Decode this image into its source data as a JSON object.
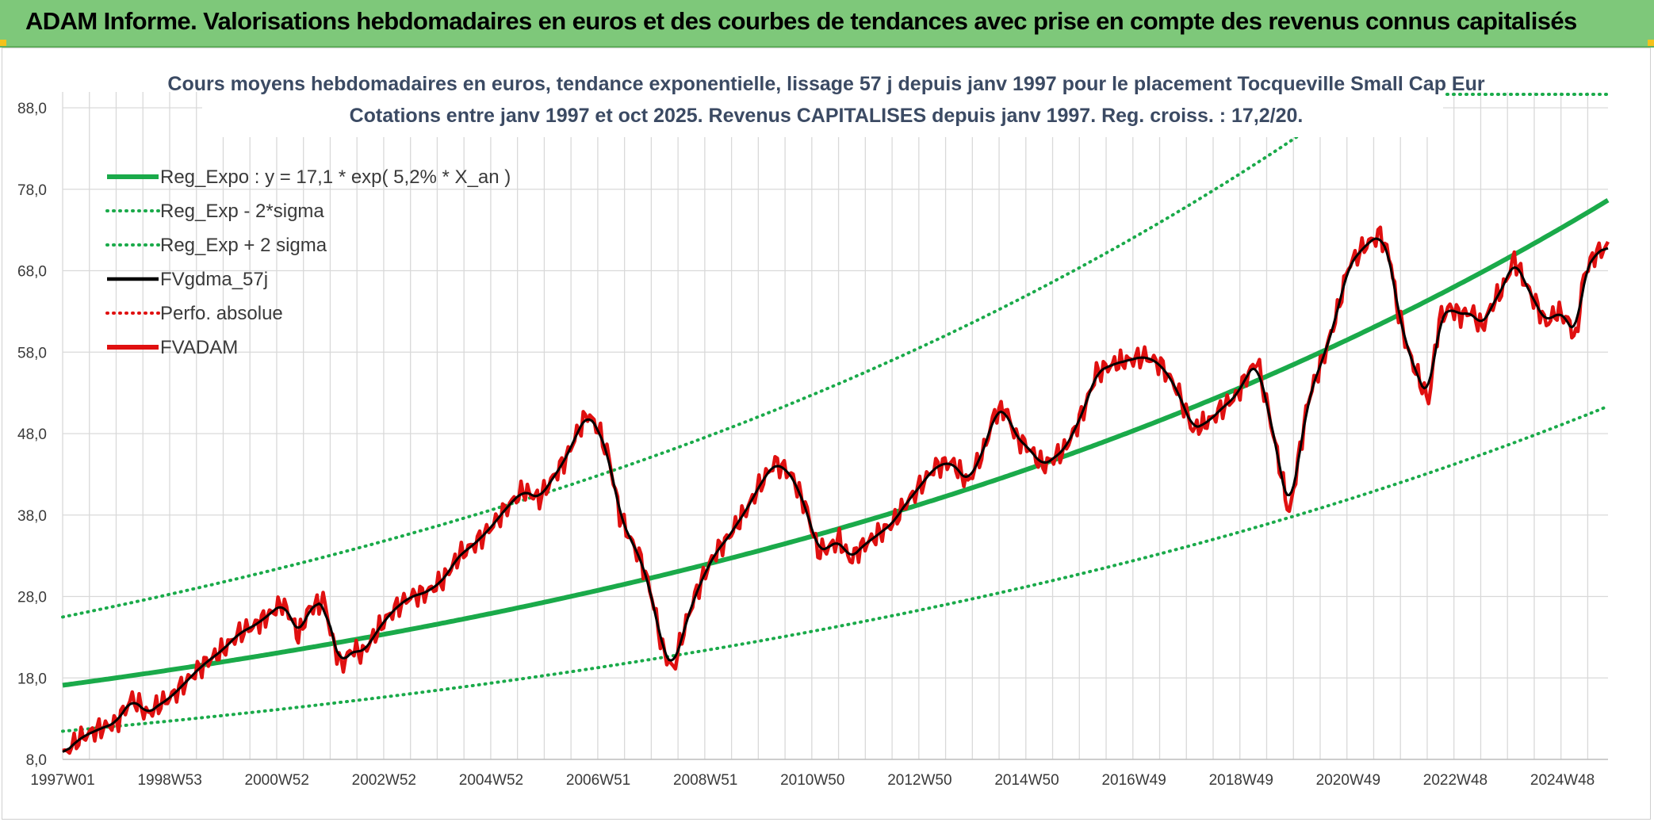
{
  "header": {
    "title": "ADAM Informe. Valorisations hebdomadaires en euros et des courbes de tendances avec prise en compte des revenus connus capitalisés",
    "background": "#7ec87a"
  },
  "chart_data": {
    "type": "line",
    "title": "Cours moyens hebdomadaires en euros, tendance exponentielle, lissage 57 j depuis janv 1997 pour le placement Tocqueville Small Cap Eur",
    "subtitle": "Cotations entre janv 1997 et oct 2025. Revenus CAPITALISES depuis janv 1997. Reg. croiss. : 17,2/20.",
    "xlabel": "",
    "ylabel": "",
    "ylim": [
      8.0,
      88.0
    ],
    "xlim": [
      1997.0,
      2025.85
    ],
    "grid": true,
    "legend_position": "top-left",
    "y_ticks": [
      "8,0",
      "18,0",
      "28,0",
      "38,0",
      "48,0",
      "58,0",
      "68,0",
      "78,0",
      "88,0"
    ],
    "x_ticks": [
      {
        "label": "1997W01",
        "x": 1997.0
      },
      {
        "label": "1998W53",
        "x": 1999.0
      },
      {
        "label": "2000W52",
        "x": 2001.0
      },
      {
        "label": "2002W52",
        "x": 2003.0
      },
      {
        "label": "2004W52",
        "x": 2005.0
      },
      {
        "label": "2006W51",
        "x": 2007.0
      },
      {
        "label": "2008W51",
        "x": 2009.0
      },
      {
        "label": "2010W50",
        "x": 2011.0
      },
      {
        "label": "2012W50",
        "x": 2013.0
      },
      {
        "label": "2014W50",
        "x": 2015.0
      },
      {
        "label": "2016W49",
        "x": 2017.0
      },
      {
        "label": "2018W49",
        "x": 2019.0
      },
      {
        "label": "2020W49",
        "x": 2021.0
      },
      {
        "label": "2022W48",
        "x": 2023.0
      },
      {
        "label": "2024W48",
        "x": 2025.0
      }
    ],
    "legend": [
      {
        "label": "Reg_Expo : y = 17,1 * exp( 5,2% *  X_an )",
        "color": "#1aaa4a",
        "style": "solid-thick"
      },
      {
        "label": "Reg_Exp - 2*sigma",
        "color": "#1aaa4a",
        "style": "dotted"
      },
      {
        "label": "Reg_Exp + 2 sigma",
        "color": "#1aaa4a",
        "style": "dotted"
      },
      {
        "label": "FVgdma_57j",
        "color": "#000000",
        "style": "solid"
      },
      {
        "label": "Perfo. absolue",
        "color": "#e01010",
        "style": "dotted"
      },
      {
        "label": "FVADAM",
        "color": "#e01010",
        "style": "solid-thick"
      }
    ],
    "regression": {
      "a": 17.1,
      "rate": 0.052,
      "start_year": 1997.0,
      "sigma_factor_low": 0.67,
      "sigma_factor_high": 1.49
    },
    "series": [
      {
        "name": "FVADAM",
        "color": "#e01010",
        "x": [
          1997.0,
          1997.3,
          1997.6,
          1998.0,
          1998.3,
          1998.6,
          1998.75,
          1999.0,
          1999.3,
          1999.6,
          2000.0,
          2000.3,
          2000.6,
          2000.9,
          2001.1,
          2001.3,
          2001.4,
          2001.6,
          2001.9,
          2002.0,
          2002.2,
          2002.4,
          2002.6,
          2002.8,
          2002.95,
          2003.2,
          2003.5,
          2003.8,
          2004.1,
          2004.4,
          2004.7,
          2005.0,
          2005.3,
          2005.6,
          2005.9,
          2006.2,
          2006.4,
          2006.6,
          2006.8,
          2007.0,
          2007.2,
          2007.4,
          2007.6,
          2007.8,
          2008.0,
          2008.2,
          2008.4,
          2008.6,
          2008.8,
          2009.0,
          2009.2,
          2009.4,
          2009.6,
          2009.8,
          2010.0,
          2010.3,
          2010.6,
          2010.9,
          2011.1,
          2011.3,
          2011.5,
          2011.7,
          2011.9,
          2012.1,
          2012.3,
          2012.5,
          2012.7,
          2013.0,
          2013.3,
          2013.6,
          2013.9,
          2014.2,
          2014.4,
          2014.6,
          2014.8,
          2015.0,
          2015.3,
          2015.5,
          2015.7,
          2015.9,
          2016.1,
          2016.3,
          2016.6,
          2016.9,
          2017.2,
          2017.5,
          2017.8,
          2018.1,
          2018.4,
          2018.7,
          2018.9,
          2019.1,
          2019.3,
          2019.6,
          2019.9,
          2020.1,
          2020.25,
          2020.4,
          2020.6,
          2020.8,
          2021.0,
          2021.3,
          2021.6,
          2021.8,
          2021.9,
          2022.1,
          2022.3,
          2022.5,
          2022.7,
          2022.9,
          2023.1,
          2023.3,
          2023.5,
          2023.7,
          2023.9,
          2024.1,
          2024.3,
          2024.5,
          2024.7,
          2024.9,
          2025.1,
          2025.25,
          2025.4,
          2025.6,
          2025.85
        ],
        "values": [
          8.5,
          10.5,
          11.5,
          12.5,
          15.5,
          13.5,
          14.5,
          15.5,
          17.5,
          19.5,
          21.5,
          23.5,
          24.5,
          26.0,
          27.2,
          25.0,
          23.0,
          26.5,
          27.5,
          23.5,
          19.5,
          21.5,
          21.0,
          23.0,
          24.5,
          26.5,
          28.0,
          28.5,
          30.0,
          33.0,
          34.5,
          36.5,
          39.0,
          41.0,
          40.0,
          43.0,
          45.0,
          48.0,
          50.5,
          48.5,
          45.0,
          38.0,
          35.0,
          32.5,
          28.0,
          21.5,
          19.0,
          24.0,
          28.0,
          31.0,
          33.5,
          35.0,
          37.0,
          39.0,
          41.5,
          44.5,
          43.0,
          38.5,
          33.5,
          34.0,
          35.0,
          32.5,
          34.0,
          35.0,
          36.0,
          37.0,
          39.0,
          41.5,
          44.0,
          44.5,
          42.0,
          46.0,
          50.5,
          51.0,
          47.5,
          46.5,
          44.0,
          45.0,
          46.0,
          48.5,
          51.5,
          55.5,
          56.5,
          57.0,
          57.5,
          56.5,
          53.5,
          48.5,
          49.5,
          51.5,
          52.5,
          55.0,
          57.0,
          48.0,
          38.0,
          46.0,
          52.0,
          55.0,
          58.5,
          63.0,
          68.5,
          71.0,
          72.5,
          69.0,
          64.0,
          58.5,
          55.0,
          52.0,
          62.0,
          63.5,
          62.5,
          63.0,
          61.0,
          64.0,
          66.0,
          69.5,
          66.5,
          64.0,
          61.5,
          63.0,
          62.0,
          59.5,
          67.5,
          70.0,
          71.0
        ]
      }
    ]
  }
}
